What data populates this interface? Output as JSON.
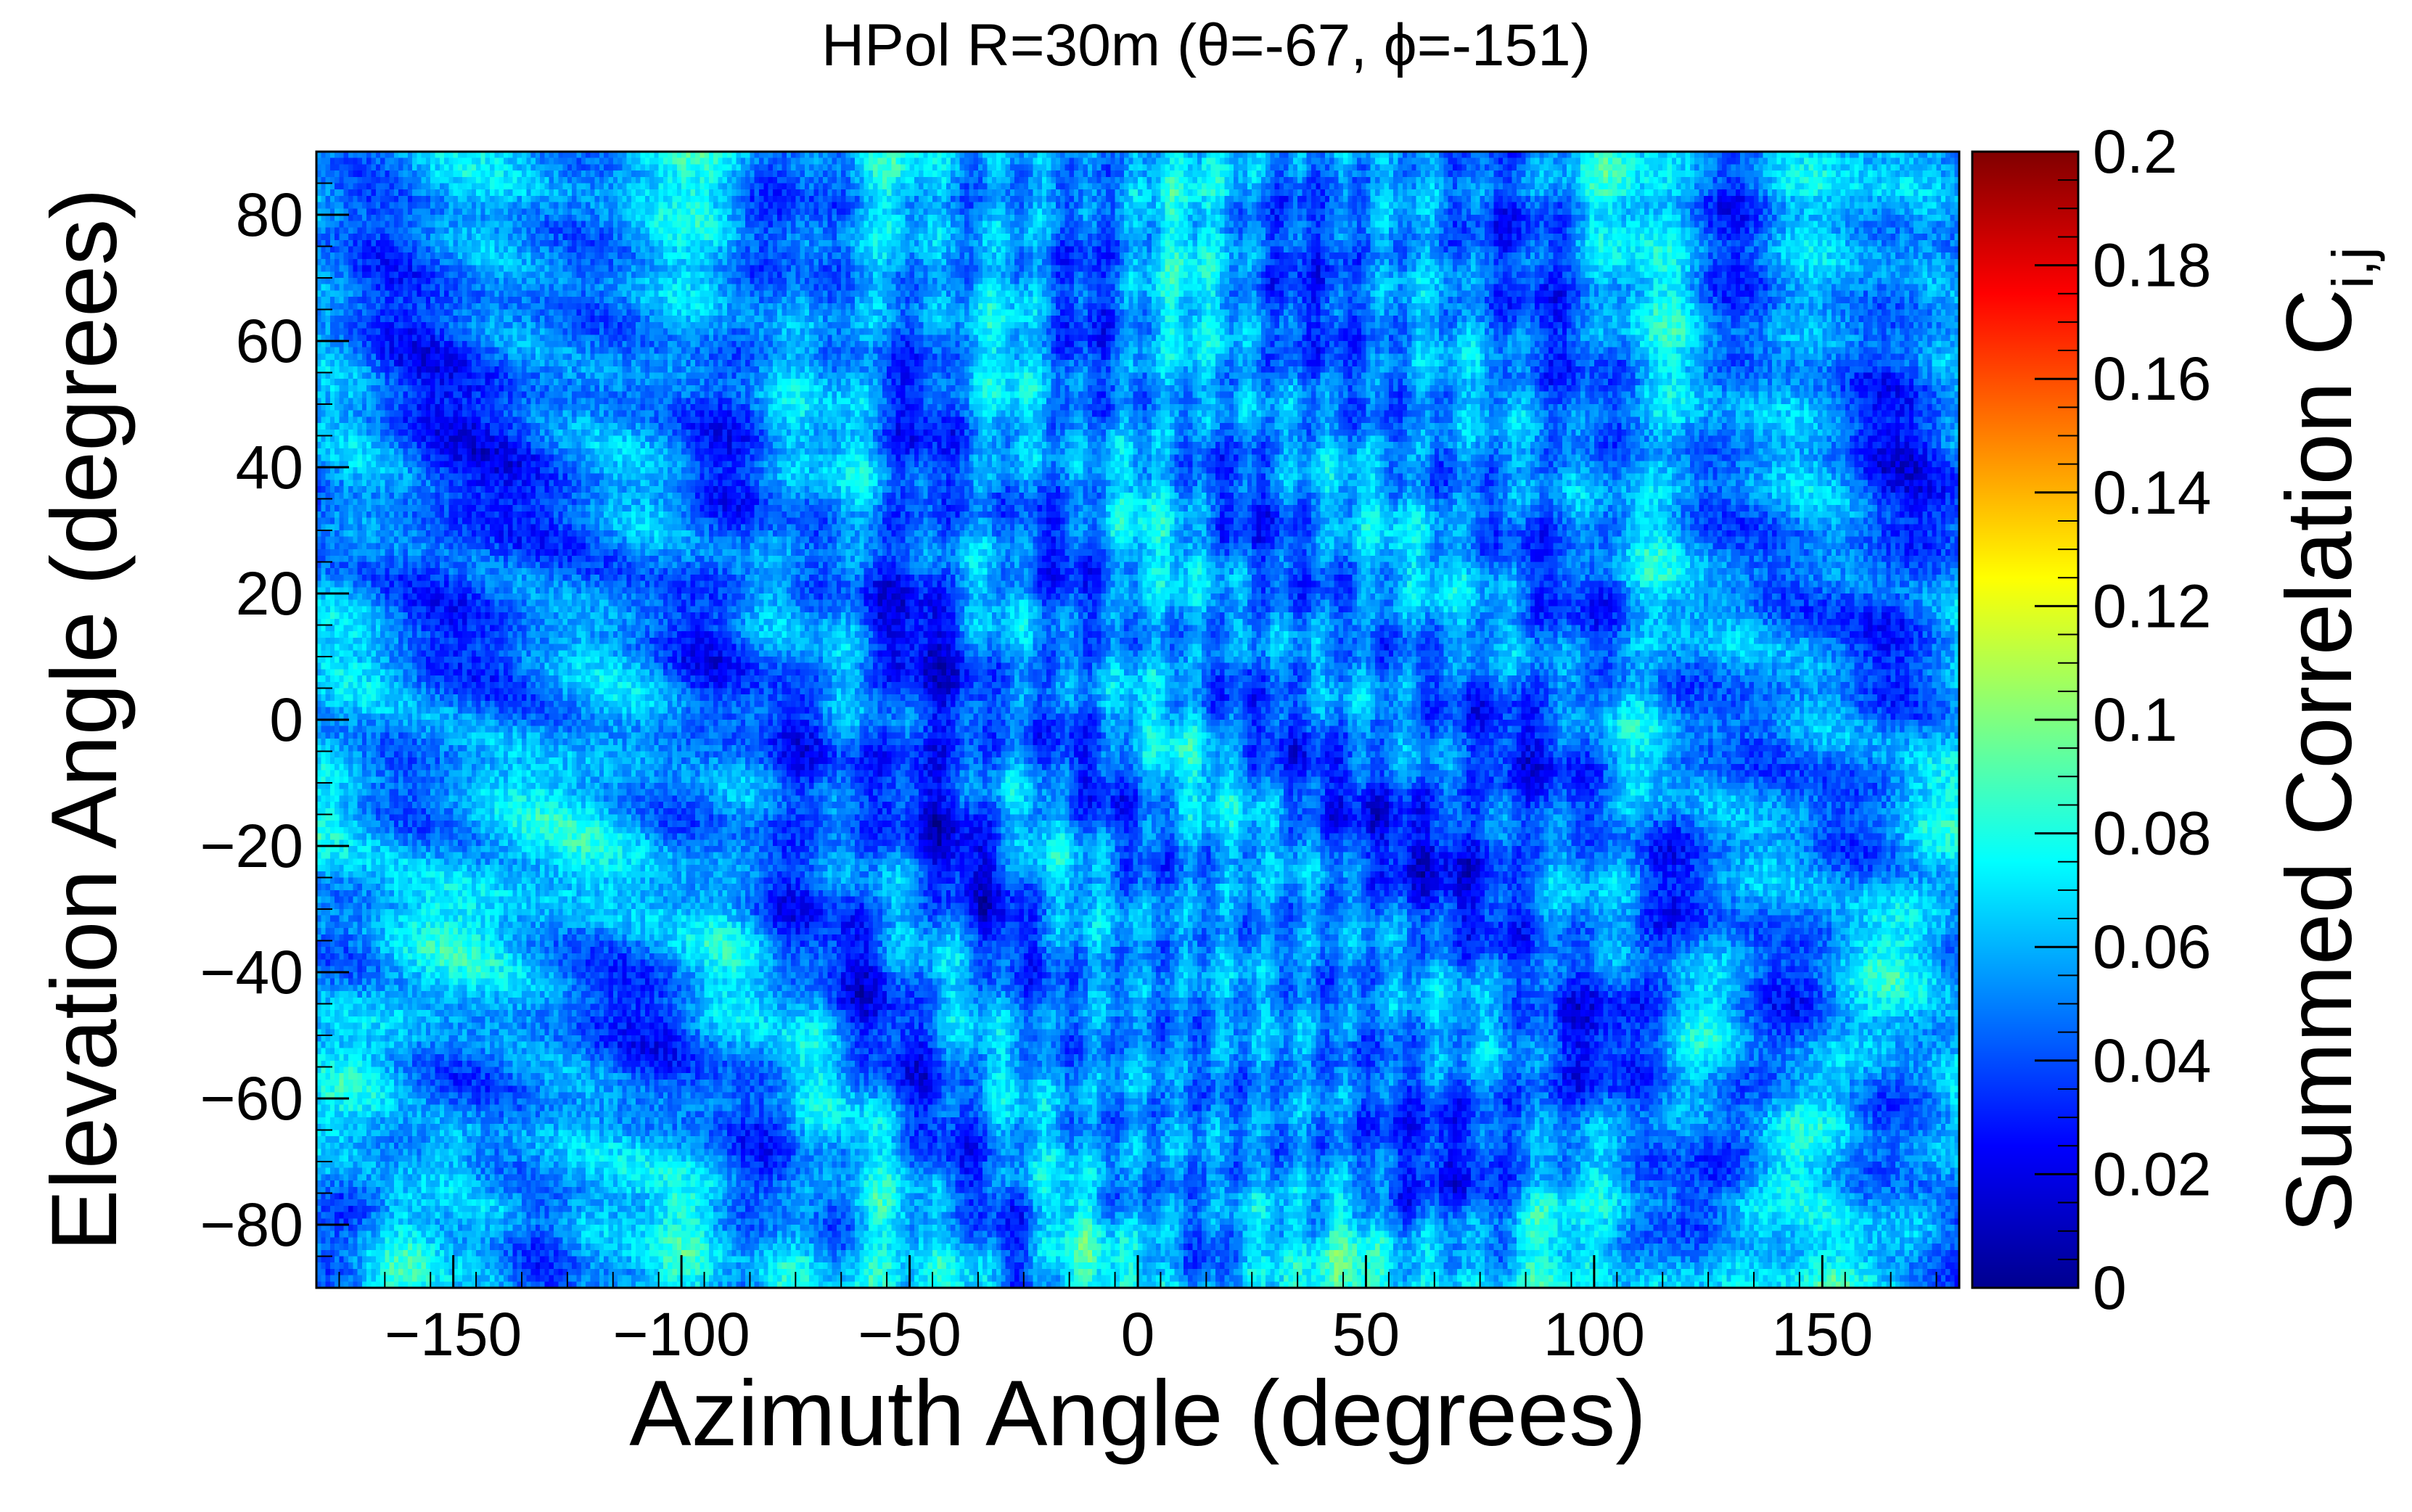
{
  "chart_data": {
    "type": "heatmap",
    "title": "HPol R=30m (θ=-67, ϕ=-151)",
    "xlabel": "Azimuth Angle (degrees)",
    "ylabel": "Elevation Angle (degrees)",
    "xlim": [
      -180,
      180
    ],
    "ylim": [
      -90,
      90
    ],
    "x_ticks": [
      -150,
      -100,
      -50,
      0,
      50,
      100,
      150
    ],
    "x_tick_labels": [
      "−150",
      "−100",
      "−50",
      "0",
      "50",
      "100",
      "150"
    ],
    "y_ticks": [
      -80,
      -60,
      -40,
      -20,
      0,
      20,
      40,
      60,
      80
    ],
    "y_tick_labels": [
      "−80",
      "−60",
      "−40",
      "−20",
      "0",
      "20",
      "40",
      "60",
      "80"
    ],
    "colorbar": {
      "label_main": "Summed Correlation C",
      "label_sub": "i,j",
      "range": [
        0,
        0.2
      ],
      "ticks": [
        0,
        0.02,
        0.04,
        0.06,
        0.08,
        0.1,
        0.12,
        0.14,
        0.16,
        0.18,
        0.2
      ],
      "tick_labels": [
        "0",
        "0.02",
        "0.04",
        "0.06",
        "0.08",
        "0.1",
        "0.12",
        "0.14",
        "0.16",
        "0.18",
        "0.2"
      ],
      "colormap": "jet"
    },
    "grid": false,
    "value_summary": {
      "typical": 0.055,
      "min_approx": 0.025,
      "max_approx": 0.115,
      "hot_spot": {
        "azimuth": -151,
        "elevation": -67
      }
    }
  }
}
